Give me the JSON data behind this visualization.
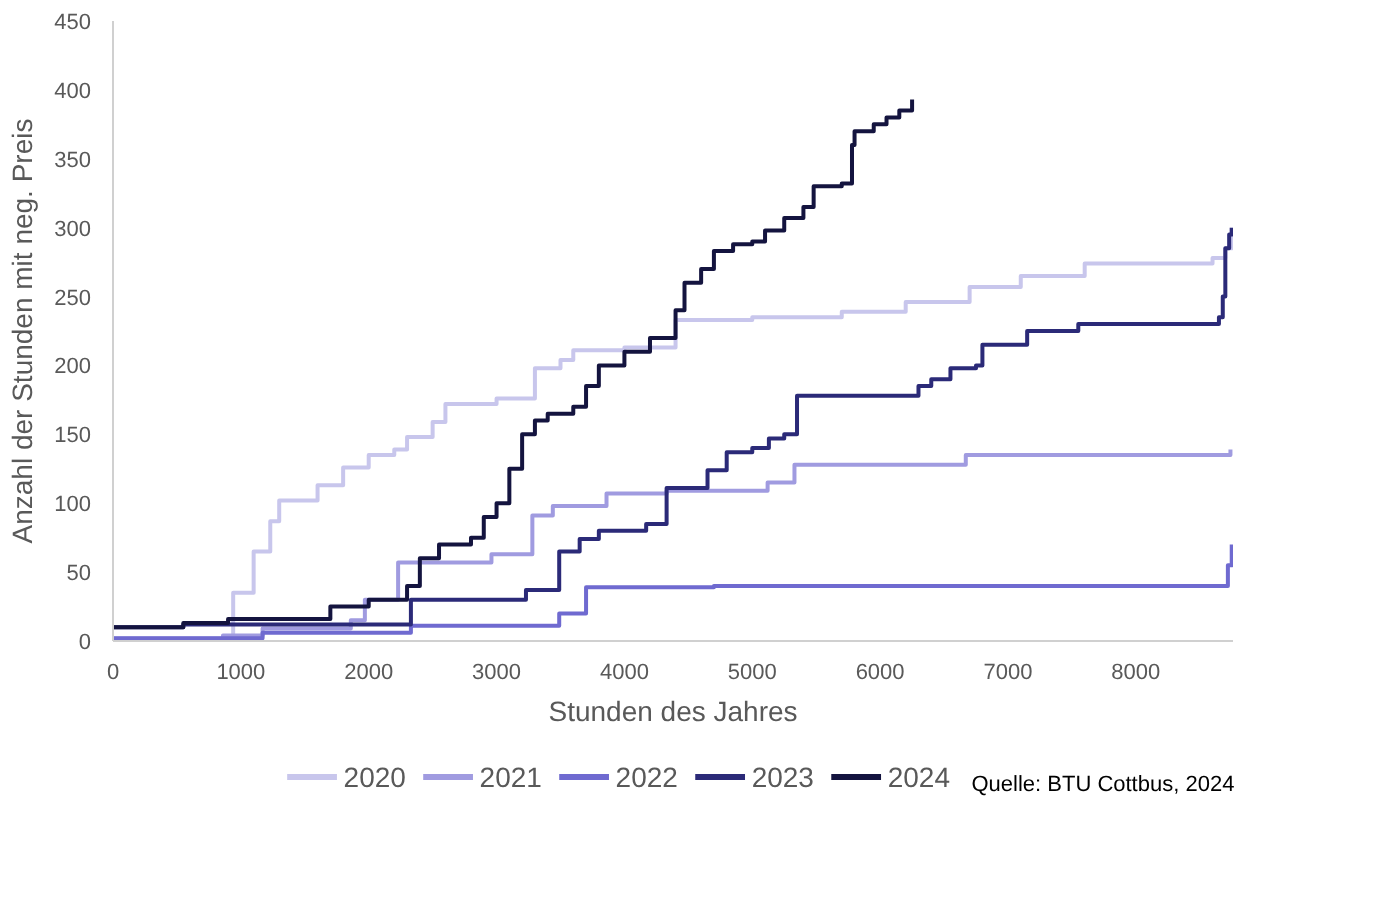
{
  "chart_data": {
    "type": "step",
    "xlabel": "Stunden des Jahres",
    "ylabel": "Anzahl der Stunden mit neg. Preis",
    "xlim": [
      0,
      8760
    ],
    "ylim": [
      0,
      450
    ],
    "xticks": [
      0,
      1000,
      2000,
      3000,
      4000,
      5000,
      6000,
      7000,
      8000
    ],
    "yticks": [
      0,
      50,
      100,
      150,
      200,
      250,
      300,
      350,
      400,
      450
    ],
    "grid": false,
    "legend": "bottom",
    "marker": "none",
    "line_style": "solid",
    "annotations": [
      "Quelle: BTU Cottbus, 2024"
    ],
    "series": [
      {
        "name": "2020",
        "color": "#c8c6ec",
        "x": [
          0,
          940,
          1100,
          1230,
          1300,
          1600,
          1800,
          2000,
          2200,
          2300,
          2500,
          2600,
          3000,
          3300,
          3500,
          3600,
          4000,
          4400,
          5000,
          5700,
          6200,
          6700,
          7100,
          7600,
          8600,
          8700,
          8750
        ],
        "values": [
          2,
          35,
          65,
          87,
          102,
          113,
          126,
          135,
          139,
          148,
          159,
          172,
          176,
          198,
          204,
          211,
          213,
          233,
          235,
          239,
          246,
          257,
          265,
          274,
          278,
          285,
          300
        ]
      },
      {
        "name": "2021",
        "color": "#a09be0",
        "x": [
          0,
          860,
          1170,
          1860,
          1970,
          2230,
          2960,
          3280,
          3440,
          3860,
          4330,
          5120,
          5330,
          6670,
          8740
        ],
        "values": [
          0,
          4,
          9,
          15,
          30,
          57,
          63,
          91,
          98,
          107,
          109,
          115,
          128,
          135,
          139
        ]
      },
      {
        "name": "2022",
        "color": "#6f6ad0",
        "x": [
          0,
          1170,
          2330,
          3490,
          3700,
          4700,
          8670,
          8720,
          8750
        ],
        "values": [
          2,
          6,
          11,
          20,
          39,
          40,
          40,
          55,
          70
        ]
      },
      {
        "name": "2023",
        "color": "#2b2a78",
        "x": [
          0,
          550,
          2330,
          3230,
          3490,
          3650,
          3800,
          4170,
          4330,
          4650,
          4800,
          5000,
          5130,
          5250,
          5350,
          6300,
          6400,
          6550,
          6750,
          6800,
          7150,
          7550,
          8650,
          8680,
          8700,
          8730,
          8750
        ],
        "values": [
          10,
          12,
          30,
          37,
          65,
          74,
          80,
          85,
          111,
          124,
          137,
          140,
          147,
          150,
          178,
          185,
          190,
          198,
          200,
          215,
          225,
          230,
          235,
          250,
          285,
          295,
          300
        ]
      },
      {
        "name": "2024",
        "color": "#14143f",
        "x": [
          0,
          550,
          900,
          1700,
          2000,
          2300,
          2400,
          2550,
          2800,
          2900,
          3000,
          3100,
          3200,
          3300,
          3400,
          3600,
          3700,
          3800,
          4000,
          4200,
          4400,
          4470,
          4600,
          4700,
          4850,
          5000,
          5100,
          5250,
          5400,
          5480,
          5700,
          5780,
          5800,
          5950,
          6050,
          6150,
          6250
        ],
        "values": [
          10,
          13,
          16,
          25,
          30,
          40,
          60,
          70,
          75,
          90,
          100,
          125,
          150,
          160,
          165,
          170,
          185,
          200,
          210,
          220,
          240,
          260,
          270,
          283,
          288,
          290,
          298,
          307,
          315,
          330,
          332,
          360,
          370,
          375,
          380,
          385,
          393
        ]
      }
    ]
  }
}
